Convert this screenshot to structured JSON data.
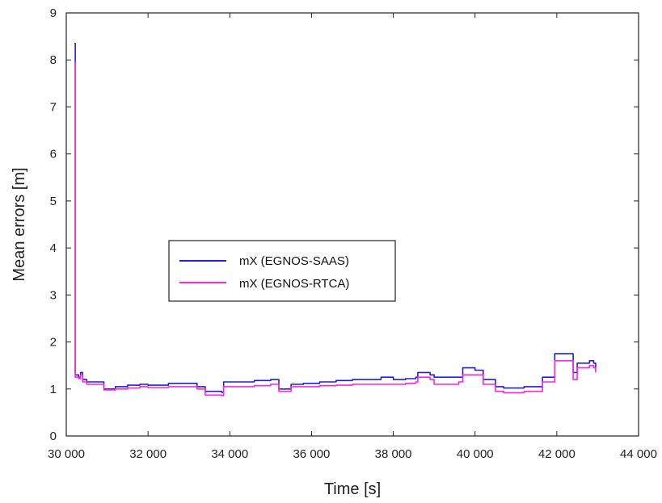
{
  "chart_data": {
    "type": "line",
    "title": "",
    "xlabel": "Time [s]",
    "ylabel": "Mean errors [m]",
    "xlim": [
      30000,
      44000
    ],
    "ylim": [
      0,
      9
    ],
    "x_ticks": [
      30000,
      32000,
      34000,
      36000,
      38000,
      40000,
      42000,
      44000
    ],
    "x_tick_labels": [
      "30 000",
      "32 000",
      "34 000",
      "36 000",
      "38 000",
      "40 000",
      "42 000",
      "44 000"
    ],
    "y_ticks": [
      0,
      1,
      2,
      3,
      4,
      5,
      6,
      7,
      8,
      9
    ],
    "y_tick_labels": [
      "0",
      "1",
      "2",
      "3",
      "4",
      "5",
      "6",
      "7",
      "8",
      "9"
    ],
    "grid": false,
    "legend_position": "center-left",
    "series": [
      {
        "name": "mX (EGNOS-SAAS)",
        "color": "#1f1fd6",
        "points": [
          [
            30200,
            8.35
          ],
          [
            30220,
            1.3
          ],
          [
            30300,
            1.25
          ],
          [
            30350,
            1.35
          ],
          [
            30400,
            1.2
          ],
          [
            30500,
            1.15
          ],
          [
            30900,
            1.15
          ],
          [
            30920,
            1.0
          ],
          [
            31200,
            1.05
          ],
          [
            31500,
            1.08
          ],
          [
            31800,
            1.1
          ],
          [
            32000,
            1.08
          ],
          [
            32500,
            1.12
          ],
          [
            33000,
            1.12
          ],
          [
            33200,
            1.05
          ],
          [
            33400,
            0.95
          ],
          [
            33800,
            0.93
          ],
          [
            33850,
            1.15
          ],
          [
            34200,
            1.15
          ],
          [
            34600,
            1.18
          ],
          [
            35000,
            1.2
          ],
          [
            35150,
            1.2
          ],
          [
            35200,
            1.0
          ],
          [
            35400,
            1.0
          ],
          [
            35500,
            1.1
          ],
          [
            35800,
            1.12
          ],
          [
            36200,
            1.15
          ],
          [
            36600,
            1.18
          ],
          [
            37000,
            1.2
          ],
          [
            37500,
            1.2
          ],
          [
            37700,
            1.25
          ],
          [
            38000,
            1.2
          ],
          [
            38300,
            1.22
          ],
          [
            38550,
            1.25
          ],
          [
            38600,
            1.35
          ],
          [
            38900,
            1.3
          ],
          [
            39000,
            1.25
          ],
          [
            39600,
            1.25
          ],
          [
            39700,
            1.45
          ],
          [
            40000,
            1.4
          ],
          [
            40200,
            1.2
          ],
          [
            40500,
            1.05
          ],
          [
            40700,
            1.02
          ],
          [
            41200,
            1.05
          ],
          [
            41600,
            1.05
          ],
          [
            41650,
            1.25
          ],
          [
            41900,
            1.25
          ],
          [
            41950,
            1.75
          ],
          [
            42300,
            1.75
          ],
          [
            42400,
            1.35
          ],
          [
            42500,
            1.55
          ],
          [
            42800,
            1.6
          ],
          [
            42900,
            1.55
          ],
          [
            42950,
            1.45
          ]
        ]
      },
      {
        "name": "mX (EGNOS-RTCA)",
        "color": "#ff22e0",
        "points": [
          [
            30200,
            7.95
          ],
          [
            30220,
            1.25
          ],
          [
            30300,
            1.22
          ],
          [
            30350,
            1.3
          ],
          [
            30400,
            1.15
          ],
          [
            30500,
            1.1
          ],
          [
            30900,
            1.1
          ],
          [
            30920,
            0.98
          ],
          [
            31200,
            1.0
          ],
          [
            31500,
            1.02
          ],
          [
            31800,
            1.05
          ],
          [
            32000,
            1.03
          ],
          [
            32500,
            1.05
          ],
          [
            33000,
            1.05
          ],
          [
            33200,
            1.0
          ],
          [
            33400,
            0.87
          ],
          [
            33800,
            0.86
          ],
          [
            33850,
            1.05
          ],
          [
            34200,
            1.05
          ],
          [
            34600,
            1.07
          ],
          [
            35000,
            1.1
          ],
          [
            35150,
            1.1
          ],
          [
            35200,
            0.95
          ],
          [
            35400,
            0.95
          ],
          [
            35500,
            1.05
          ],
          [
            35800,
            1.05
          ],
          [
            36200,
            1.07
          ],
          [
            36600,
            1.08
          ],
          [
            37000,
            1.1
          ],
          [
            37500,
            1.1
          ],
          [
            37700,
            1.1
          ],
          [
            38000,
            1.1
          ],
          [
            38300,
            1.12
          ],
          [
            38550,
            1.15
          ],
          [
            38600,
            1.25
          ],
          [
            38900,
            1.2
          ],
          [
            39000,
            1.1
          ],
          [
            39600,
            1.15
          ],
          [
            39700,
            1.3
          ],
          [
            40000,
            1.3
          ],
          [
            40200,
            1.1
          ],
          [
            40500,
            0.95
          ],
          [
            40700,
            0.92
          ],
          [
            41200,
            0.95
          ],
          [
            41600,
            0.95
          ],
          [
            41650,
            1.15
          ],
          [
            41900,
            1.15
          ],
          [
            41950,
            1.6
          ],
          [
            42300,
            1.6
          ],
          [
            42400,
            1.2
          ],
          [
            42500,
            1.45
          ],
          [
            42800,
            1.5
          ],
          [
            42900,
            1.45
          ],
          [
            42950,
            1.35
          ]
        ]
      }
    ]
  }
}
